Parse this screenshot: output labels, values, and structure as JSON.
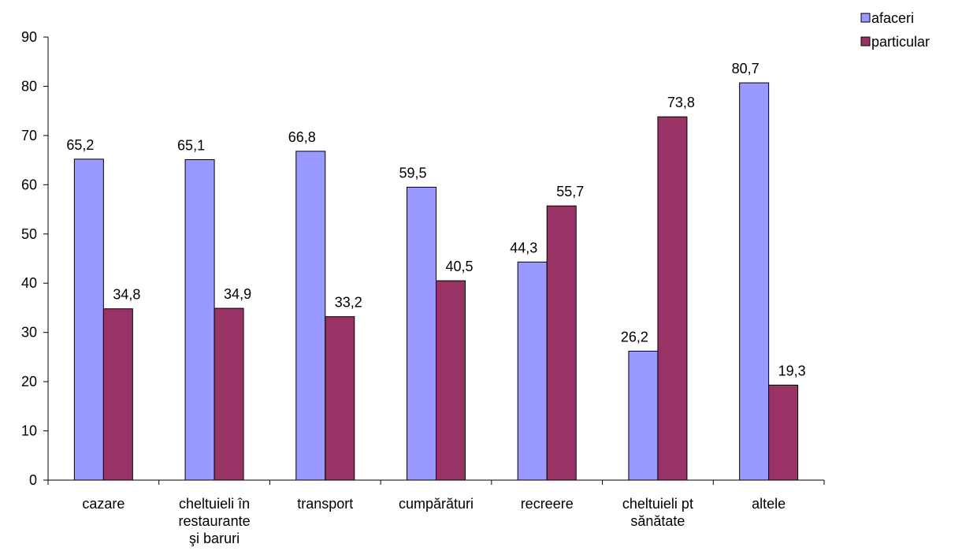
{
  "chart_data": {
    "type": "bar",
    "categories": [
      [
        "cazare"
      ],
      [
        "cheltuieli în",
        "restaurante",
        "şi baruri"
      ],
      [
        "transport"
      ],
      [
        "cumpărături"
      ],
      [
        "recreere"
      ],
      [
        "cheltuieli pt",
        "sănătate"
      ],
      [
        "altele"
      ]
    ],
    "series": [
      {
        "name": "afaceri",
        "color": "#9999FF",
        "values": [
          65.2,
          65.1,
          66.8,
          59.5,
          44.3,
          26.2,
          80.7
        ],
        "labels": [
          "65,2",
          "65,1",
          "66,8",
          "59,5",
          "44,3",
          "26,2",
          "80,7"
        ]
      },
      {
        "name": "particular",
        "color": "#993366",
        "values": [
          34.8,
          34.9,
          33.2,
          40.5,
          55.7,
          73.8,
          19.3
        ],
        "labels": [
          "34,8",
          "34,9",
          "33,2",
          "40,5",
          "55,7",
          "73,8",
          "19,3"
        ]
      }
    ],
    "yticks": [
      0,
      10,
      20,
      30,
      40,
      50,
      60,
      70,
      80,
      90
    ],
    "ylim": [
      0,
      90
    ],
    "title": "",
    "xlabel": "",
    "ylabel": "",
    "grid": false,
    "legend": "top-right"
  }
}
